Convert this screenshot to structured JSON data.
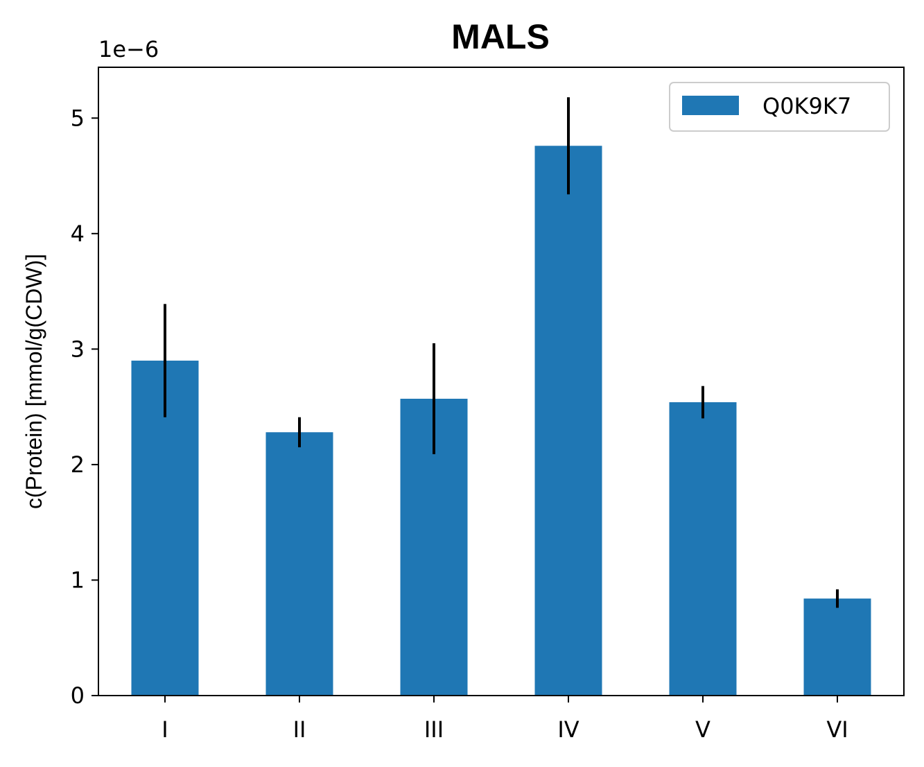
{
  "chart_data": {
    "type": "bar",
    "title": "MALS",
    "xlabel": "",
    "ylabel": "c(Protein) [mmol/g(CDW)]",
    "y_scale_label": "1e−6",
    "categories": [
      "I",
      "II",
      "III",
      "IV",
      "V",
      "VI"
    ],
    "series": [
      {
        "name": "Q0K9K7",
        "color": "#1f77b4",
        "values": [
          2.9e-06,
          2.28e-06,
          2.57e-06,
          4.76e-06,
          2.54e-06,
          8.4e-07
        ],
        "errors": [
          4.9e-07,
          1.3e-07,
          4.8e-07,
          4.2e-07,
          1.4e-07,
          8e-08
        ]
      }
    ],
    "ylim": [
      0,
      5.44e-06
    ],
    "yticks": [
      0,
      1,
      2,
      3,
      4,
      5
    ],
    "ytick_labels": [
      "0",
      "1",
      "2",
      "3",
      "4",
      "5"
    ],
    "error_color": "#000000",
    "grid": false,
    "legend_position": "upper right"
  }
}
